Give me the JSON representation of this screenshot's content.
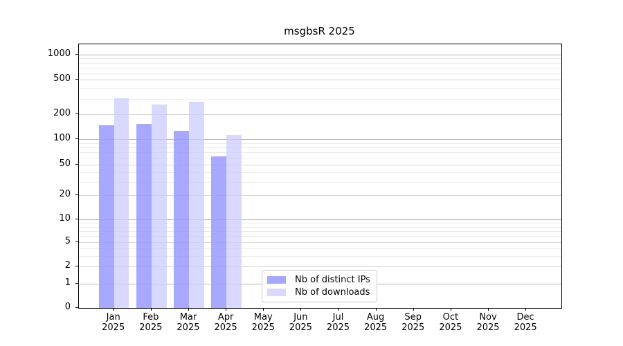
{
  "chart_data": {
    "type": "bar",
    "title": "msgbsR 2025",
    "scale": "symlog",
    "grid": "horizontal major + log minor",
    "legend_position": "inside lower-center",
    "categories": [
      "Jan",
      "Feb",
      "Mar",
      "Apr",
      "May",
      "Jun",
      "Jul",
      "Aug",
      "Sep",
      "Oct",
      "Nov",
      "Dec"
    ],
    "category_year": "2025",
    "xlabel": "",
    "ylabel": "",
    "y_ticks": [
      0,
      1,
      2,
      5,
      10,
      20,
      50,
      100,
      200,
      500,
      1000
    ],
    "ylim": [
      0,
      1330
    ],
    "series": [
      {
        "name": "Nb of distinct IPs",
        "color": "#9999ff",
        "values": [
          147,
          152,
          127,
          63,
          0,
          0,
          0,
          0,
          0,
          0,
          0,
          0
        ]
      },
      {
        "name": "Nb of downloads",
        "color": "#ccccff",
        "values": [
          305,
          258,
          279,
          112,
          0,
          0,
          0,
          0,
          0,
          0,
          0,
          0
        ]
      }
    ]
  }
}
